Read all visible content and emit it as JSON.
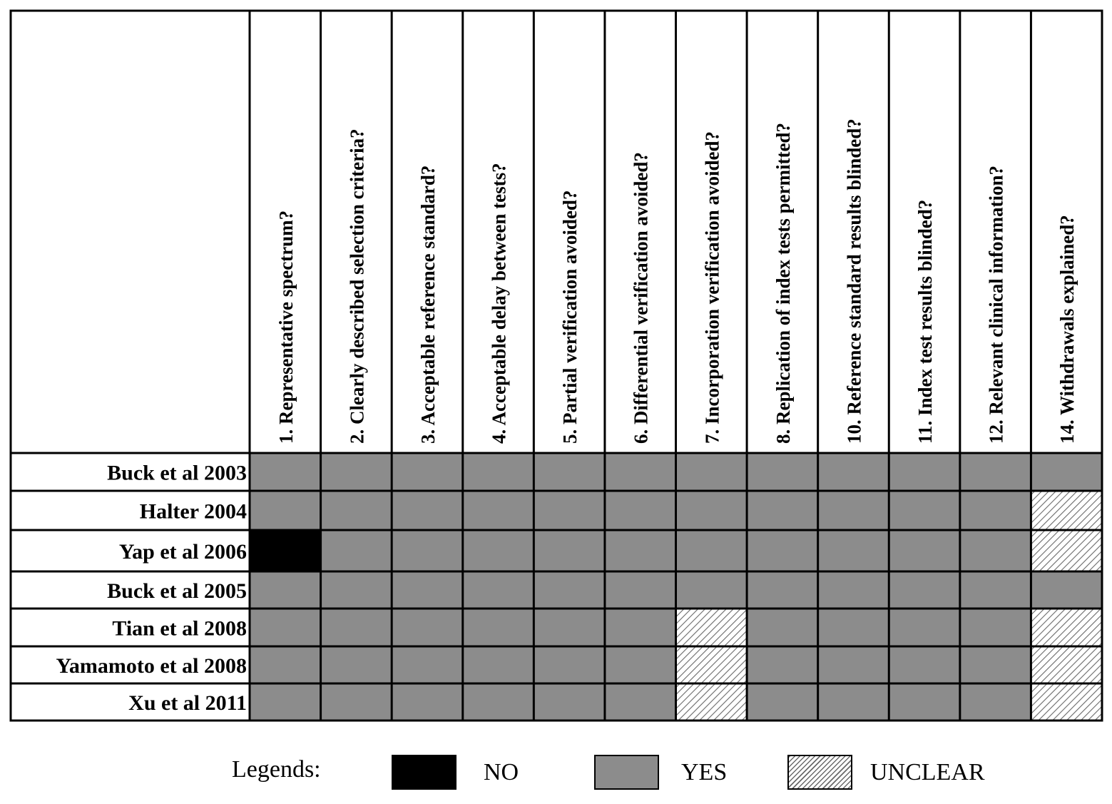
{
  "chart_data": {
    "type": "table",
    "questions": [
      "1.  Representative spectrum?",
      "2. Clearly described selection criteria?",
      "3. Acceptable reference standard?",
      "4. Acceptable delay between tests?",
      "5. Partial verification avoided?",
      "6. Differential verification avoided?",
      "7. Incorporation verification avoided?",
      "8. Replication of index tests permitted?",
      "10. Reference standard results blinded?",
      "11. Index test results blinded?",
      "12. Relevant clinical information?",
      "14. Withdrawals explained?"
    ],
    "studies": [
      "Buck et al 2003",
      "Halter 2004",
      "Yap et al 2006",
      "Buck et al 2005",
      "Tian et al 2008",
      "Yamamoto et al 2008",
      "Xu et al 2011"
    ],
    "ratings": [
      [
        "YES",
        "YES",
        "YES",
        "YES",
        "YES",
        "YES",
        "YES",
        "YES",
        "YES",
        "YES",
        "YES",
        "YES"
      ],
      [
        "YES",
        "YES",
        "YES",
        "YES",
        "YES",
        "YES",
        "YES",
        "YES",
        "YES",
        "YES",
        "YES",
        "UNCLEAR"
      ],
      [
        "NO",
        "YES",
        "YES",
        "YES",
        "YES",
        "YES",
        "YES",
        "YES",
        "YES",
        "YES",
        "YES",
        "UNCLEAR"
      ],
      [
        "YES",
        "YES",
        "YES",
        "YES",
        "YES",
        "YES",
        "YES",
        "YES",
        "YES",
        "YES",
        "YES",
        "YES"
      ],
      [
        "YES",
        "YES",
        "YES",
        "YES",
        "YES",
        "YES",
        "UNCLEAR",
        "YES",
        "YES",
        "YES",
        "YES",
        "UNCLEAR"
      ],
      [
        "YES",
        "YES",
        "YES",
        "YES",
        "YES",
        "YES",
        "UNCLEAR",
        "YES",
        "YES",
        "YES",
        "YES",
        "UNCLEAR"
      ],
      [
        "YES",
        "YES",
        "YES",
        "YES",
        "YES",
        "YES",
        "UNCLEAR",
        "YES",
        "YES",
        "YES",
        "YES",
        "UNCLEAR"
      ]
    ],
    "colors": {
      "NO": "#000000",
      "YES": "#8c8c8c",
      "UNCLEAR": "hatched"
    }
  },
  "legend": {
    "title": "Legends:",
    "no_label": "NO",
    "yes_label": "YES",
    "unclear_label": "UNCLEAR"
  }
}
